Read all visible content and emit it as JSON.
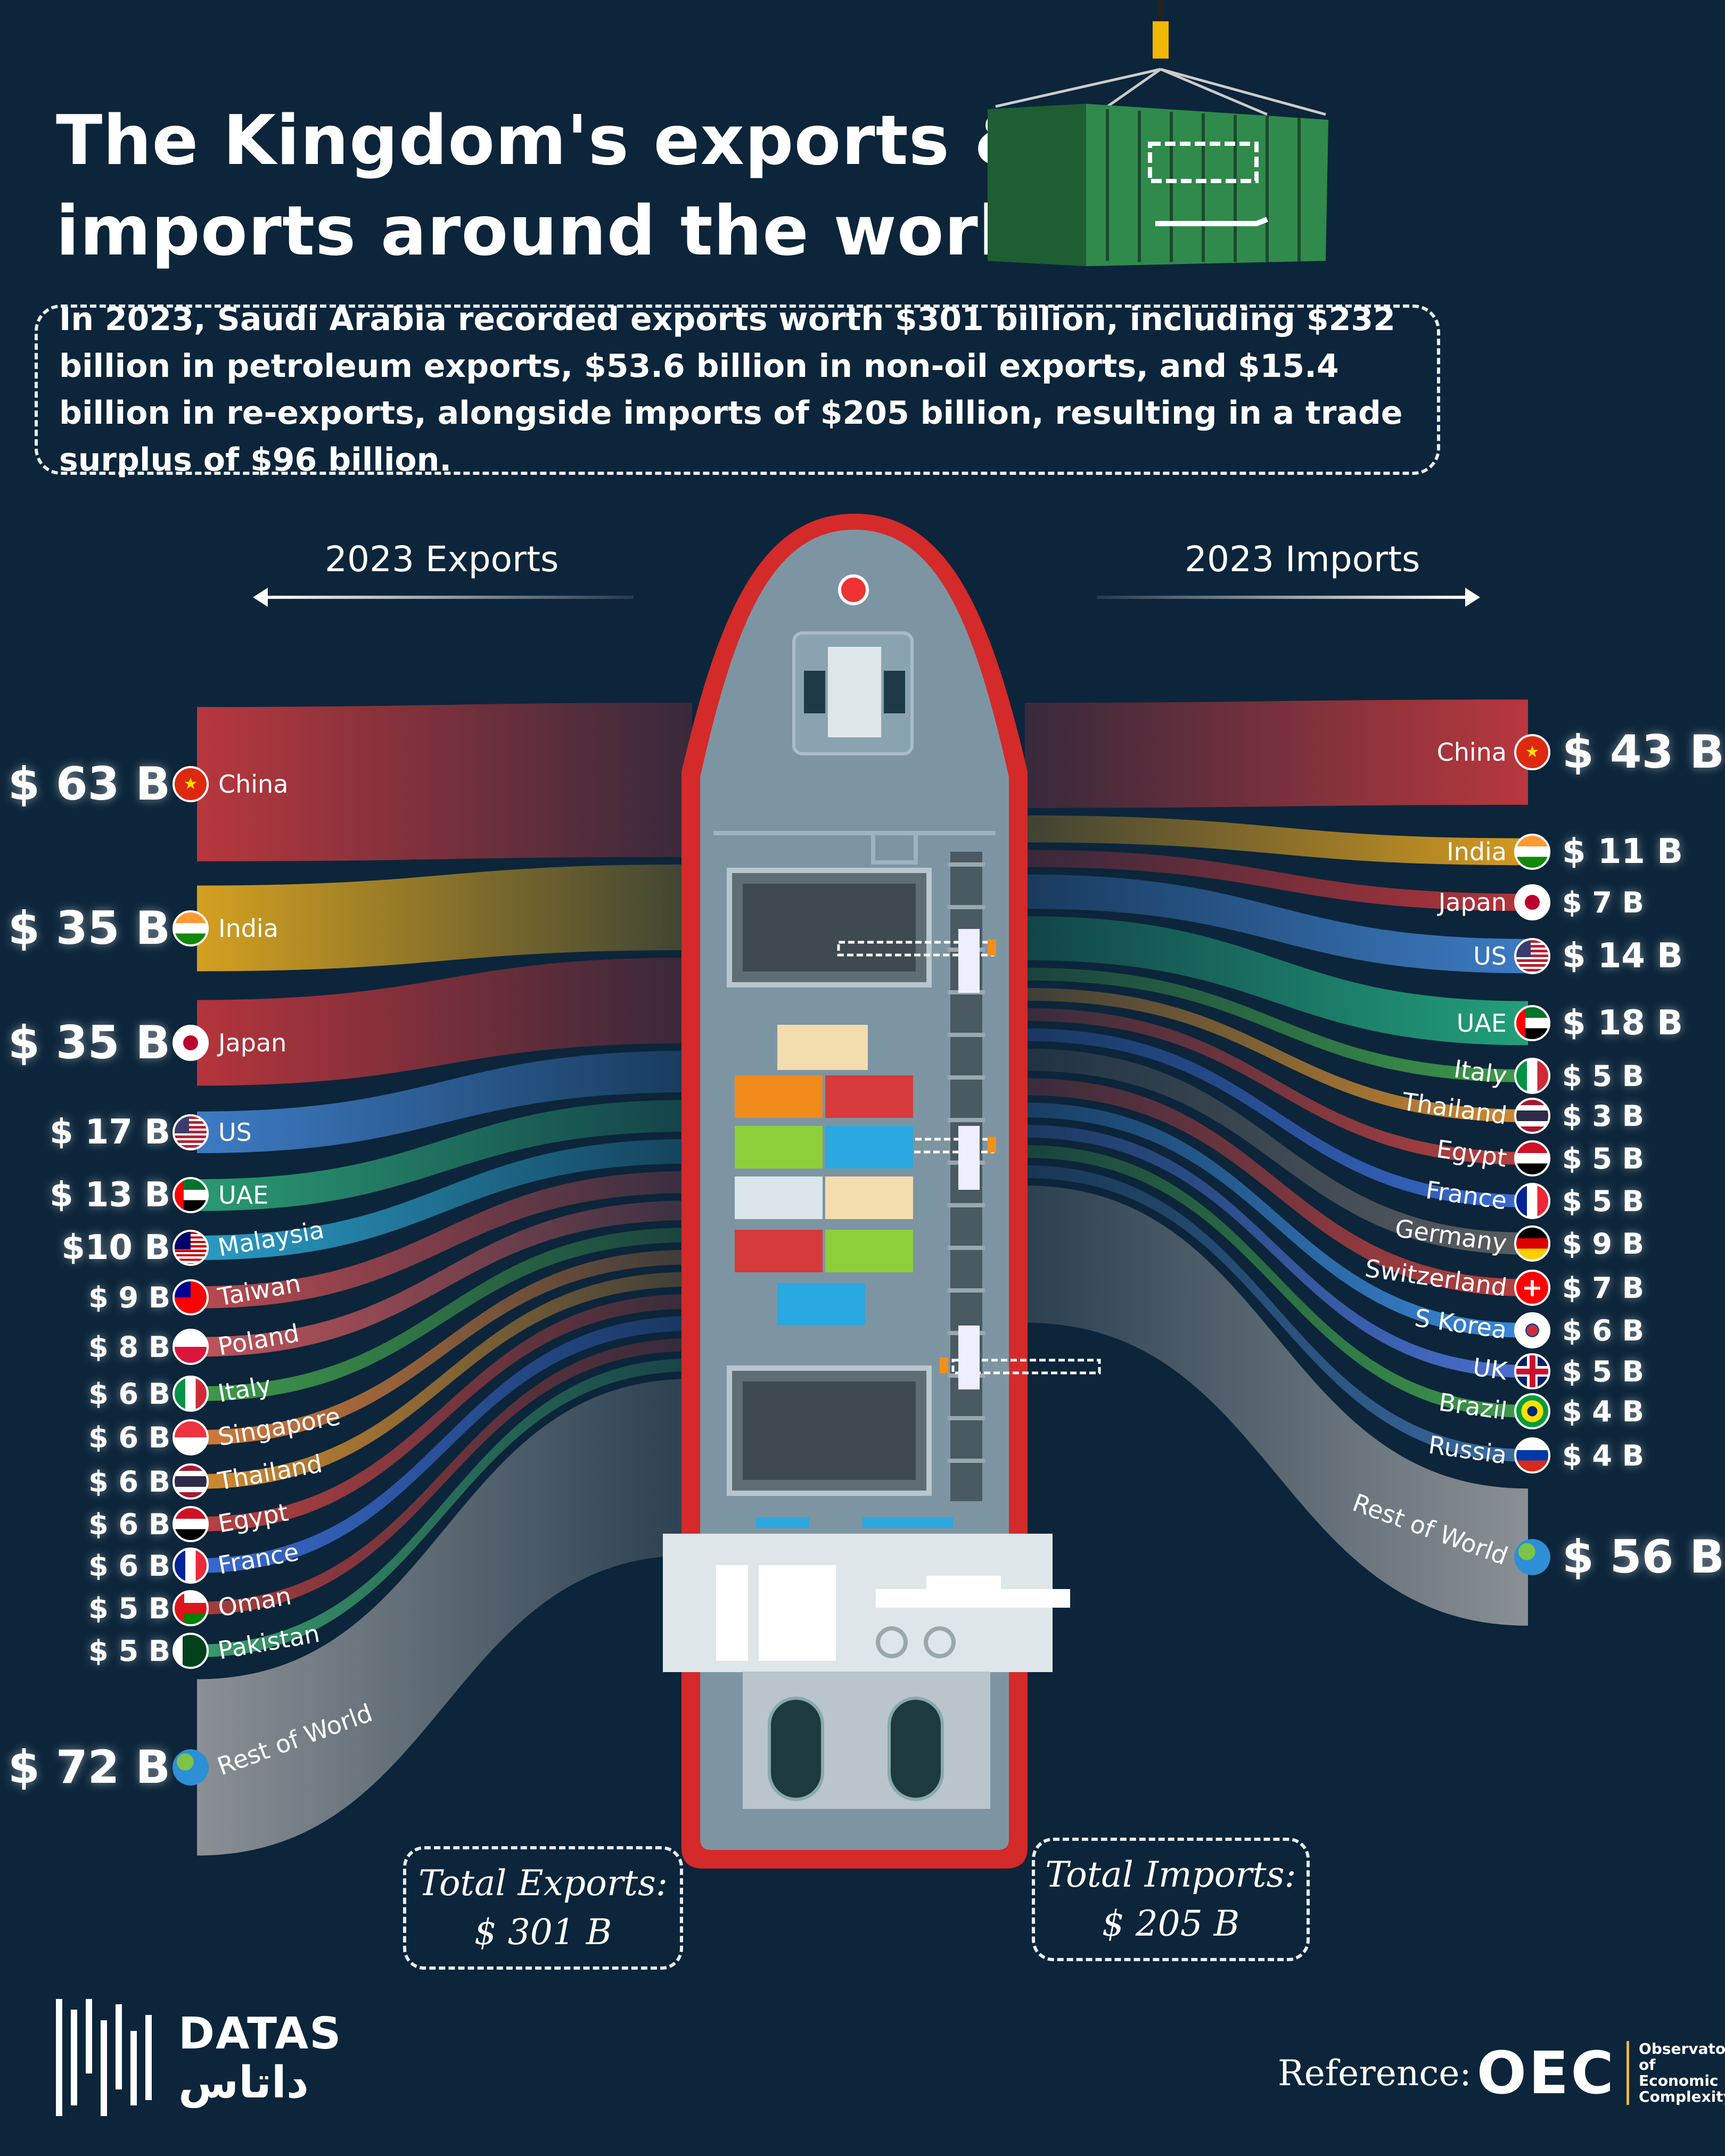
{
  "title": [
    "The Kingdom's exports &",
    "imports around the world"
  ],
  "summary": "In 2023, Saudi Arabia recorded exports worth $301 billion, including $232 billion in petroleum exports, $53.6 billion in non-oil exports, and $15.4 billion in re-exports, alongside imports of $205 billion, resulting in a trade surplus of $96 billion.",
  "exports_heading": "2023 Exports",
  "imports_heading": "2023 Imports",
  "exports": [
    {
      "country": "China",
      "value": 63,
      "label": "$ 63 B",
      "color": "#b8373d",
      "flag": "flag-china"
    },
    {
      "country": "India",
      "value": 35,
      "label": "$ 35 B",
      "color": "#d4a020",
      "flag": "flag-india"
    },
    {
      "country": "Japan",
      "value": 35,
      "label": "$ 35 B",
      "color": "#b5343b",
      "flag": "flag-japan"
    },
    {
      "country": "US",
      "value": 17,
      "label": "$ 17 B",
      "color": "#3d7bc4",
      "flag": "flag-us"
    },
    {
      "country": "UAE",
      "value": 13,
      "label": "$ 13 B",
      "color": "#2a9a72",
      "flag": "flag-uae"
    },
    {
      "country": "Malaysia",
      "value": 10,
      "label": "$10 B",
      "color": "#2a9bc4",
      "flag": "flag-malaysia"
    },
    {
      "country": "Taiwan",
      "value": 9,
      "label": "$ 9 B",
      "color": "#b84a50",
      "flag": "flag-taiwan"
    },
    {
      "country": "Poland",
      "value": 8,
      "label": "$ 8 B",
      "color": "#c0545a",
      "flag": "flag-poland"
    },
    {
      "country": "Italy",
      "value": 6,
      "label": "$ 6 B",
      "color": "#3f9a4a",
      "flag": "flag-italy"
    },
    {
      "country": "Singapore",
      "value": 6,
      "label": "$ 6 B",
      "color": "#d07a3a",
      "flag": "flag-singapore"
    },
    {
      "country": "Thailand",
      "value": 6,
      "label": "$ 6 B",
      "color": "#d08a30",
      "flag": "flag-thailand"
    },
    {
      "country": "Egypt",
      "value": 6,
      "label": "$ 6 B",
      "color": "#b84040",
      "flag": "flag-egypt"
    },
    {
      "country": "France",
      "value": 6,
      "label": "$ 6 B",
      "color": "#3a6ad0",
      "flag": "flag-france"
    },
    {
      "country": "Oman",
      "value": 5,
      "label": "$ 5 B",
      "color": "#a63c3c",
      "flag": "flag-oman"
    },
    {
      "country": "Pakistan",
      "value": 5,
      "label": "$ 5 B",
      "color": "#3a9a6a",
      "flag": "flag-pakistan"
    },
    {
      "country": "Rest of World",
      "value": 72,
      "label": "$ 72 B",
      "color": "#8a9094",
      "flag": "flag-world"
    }
  ],
  "imports": [
    {
      "country": "China",
      "value": 43,
      "label": "$ 43 B",
      "color": "#b8373d",
      "flag": "flag-china"
    },
    {
      "country": "India",
      "value": 11,
      "label": "$ 11 B",
      "color": "#d49a20",
      "flag": "flag-india"
    },
    {
      "country": "Japan",
      "value": 7,
      "label": "$ 7 B",
      "color": "#b5343b",
      "flag": "flag-japan"
    },
    {
      "country": "US",
      "value": 14,
      "label": "$ 14 B",
      "color": "#3d7bc4",
      "flag": "flag-us"
    },
    {
      "country": "UAE",
      "value": 18,
      "label": "$ 18 B",
      "color": "#22a07a",
      "flag": "flag-uae"
    },
    {
      "country": "Italy",
      "value": 5,
      "label": "$ 5 B",
      "color": "#3f9a4a",
      "flag": "flag-italy"
    },
    {
      "country": "Thailand",
      "value": 3,
      "label": "$ 3 B",
      "color": "#d08a30",
      "flag": "flag-thailand"
    },
    {
      "country": "Egypt",
      "value": 5,
      "label": "$ 5 B",
      "color": "#b84040",
      "flag": "flag-egypt"
    },
    {
      "country": "France",
      "value": 5,
      "label": "$ 5 B",
      "color": "#3a6ad0",
      "flag": "flag-france"
    },
    {
      "country": "Germany",
      "value": 9,
      "label": "$ 9 B",
      "color": "#5a5d60",
      "flag": "flag-germany"
    },
    {
      "country": "Switzerland",
      "value": 7,
      "label": "$ 7 B",
      "color": "#b84040",
      "flag": "flag-switzerland"
    },
    {
      "country": "S Korea",
      "value": 6,
      "label": "$ 6 B",
      "color": "#3a88d8",
      "flag": "flag-skorea"
    },
    {
      "country": "UK",
      "value": 5,
      "label": "$ 5 B",
      "color": "#4a70d0",
      "flag": "flag-uk"
    },
    {
      "country": "Brazil",
      "value": 4,
      "label": "$ 4 B",
      "color": "#3f9a4a",
      "flag": "flag-brazil"
    },
    {
      "country": "Russia",
      "value": 4,
      "label": "$ 4 B",
      "color": "#3a6aa0",
      "flag": "flag-russia"
    },
    {
      "country": "Rest of World",
      "value": 56,
      "label": "$ 56 B",
      "color": "#8a9094",
      "flag": "flag-world"
    }
  ],
  "totals": {
    "exports_label": "Total Exports:",
    "exports_value": "$ 301 B",
    "imports_label": "Total Imports:",
    "imports_value": "$ 205 B"
  },
  "footer": {
    "brand": "DATAS",
    "brand_arabic": "داتاس",
    "reference_label": "Reference:",
    "oec_logo": "OEC",
    "oec_name": [
      "Observatory of",
      "Economic",
      "Complexity"
    ]
  },
  "colors": {
    "background": "#0c253a",
    "hull": "#d42a2a",
    "deck": "#7d95a3",
    "container": "#2f8a4c"
  }
}
